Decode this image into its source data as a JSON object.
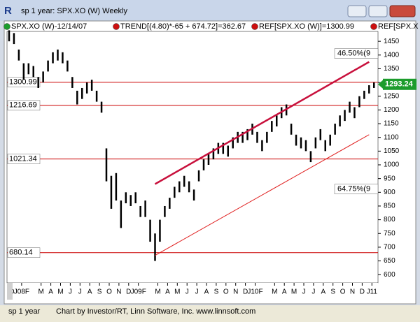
{
  "window": {
    "title": "sp 1 year: SPX.XO (W) Weekly",
    "status_left": "sp 1 year",
    "status_text": "Chart by Investor/RT, Linn Software, Inc. www.linnsoft.com"
  },
  "legend": [
    "SPX.XO (W)-12/14/07",
    "TREND[(4.80)*-65 + 674.72]=362.67",
    "REF[SPX.XO (W)]=1300.99",
    "REF[SPX.X"
  ],
  "chart_data": {
    "type": "ohlc",
    "categories": [
      "D",
      "J08F",
      null,
      "M",
      "A",
      "M",
      "J",
      "J",
      "A",
      "S",
      "O",
      "N",
      "D",
      "J09F",
      null,
      "M",
      "A",
      "M",
      "J",
      "J",
      "A",
      "S",
      "O",
      "N",
      "D",
      "J10F",
      null,
      "M",
      "A",
      "M",
      "J",
      "J",
      "A",
      "S",
      "O",
      "N",
      "D",
      "J11"
    ],
    "high": [
      1490,
      1480,
      1420,
      1370,
      1370,
      1360,
      1320,
      1340,
      1380,
      1410,
      1420,
      1410,
      1380,
      1320,
      1270,
      1280,
      1300,
      1310,
      1270,
      1230,
      1060,
      960,
      970,
      870,
      900,
      890,
      900,
      850,
      870,
      800,
      750,
      800,
      850,
      880,
      920,
      940,
      960,
      940,
      910,
      980,
      1020,
      1040,
      1060,
      1080,
      1080,
      1070,
      1100,
      1120,
      1120,
      1130,
      1150,
      1120,
      1090,
      1120,
      1160,
      1180,
      1210,
      1220,
      1150,
      1110,
      1100,
      1090,
      1050,
      1100,
      1130,
      1090,
      1110,
      1150,
      1180,
      1200,
      1230,
      1210,
      1250,
      1270,
      1290,
      1300
    ],
    "low": [
      1450,
      1440,
      1380,
      1310,
      1330,
      1320,
      1280,
      1300,
      1340,
      1370,
      1380,
      1370,
      1340,
      1280,
      1220,
      1240,
      1260,
      1270,
      1230,
      1190,
      940,
      840,
      870,
      770,
      860,
      850,
      860,
      810,
      810,
      720,
      650,
      720,
      810,
      840,
      880,
      900,
      920,
      900,
      870,
      940,
      980,
      1000,
      1020,
      1040,
      1040,
      1030,
      1060,
      1080,
      1080,
      1090,
      1110,
      1080,
      1050,
      1080,
      1120,
      1140,
      1170,
      1180,
      1110,
      1070,
      1060,
      1050,
      1010,
      1060,
      1090,
      1050,
      1070,
      1110,
      1140,
      1160,
      1190,
      1170,
      1210,
      1240,
      1260,
      1280
    ],
    "ylim": [
      570,
      1486
    ],
    "yticks": [
      600,
      650,
      700,
      750,
      800,
      850,
      900,
      950,
      1000,
      1050,
      1100,
      1150,
      1200,
      1250,
      1300,
      1350,
      1400,
      1450
    ],
    "color": "#000000",
    "ref_lines": [
      1300.99,
      1216.69,
      1021.34,
      680.14
    ],
    "ref_color": "#cc0000",
    "trend_lines": [
      {
        "x": [
          30,
          74
        ],
        "values": [
          930,
          1375
        ],
        "label": "46.50%(9",
        "color": "#c8103c"
      },
      {
        "x": [
          30,
          74
        ],
        "values": [
          670,
          1110
        ],
        "label": "64.75%(9",
        "color": "#e02020"
      }
    ],
    "last": 1293.24
  }
}
